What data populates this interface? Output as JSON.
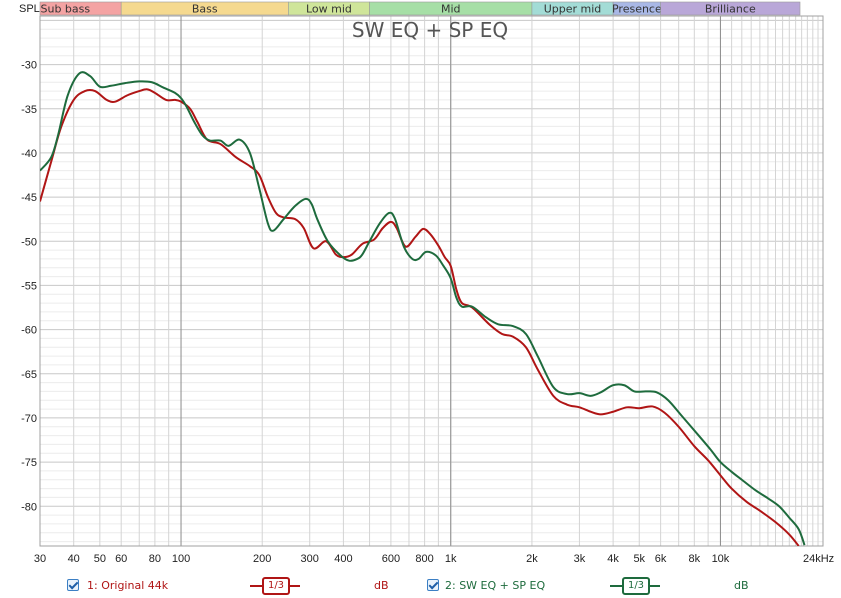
{
  "chart_data": {
    "type": "line",
    "title": "SW EQ + SP EQ",
    "ylabel": "SPL",
    "xscale": "log",
    "xlim": [
      30,
      24000
    ],
    "ylim": [
      -84.5,
      -24.5
    ],
    "grid": true,
    "yticks": [
      -30,
      -35,
      -40,
      -45,
      -50,
      -55,
      -60,
      -65,
      -70,
      -75,
      -80
    ],
    "ytick_labels": [
      "-30",
      "-35",
      "-40",
      "-45",
      "-50",
      "-55",
      "-60",
      "-65",
      "-70",
      "-75",
      "-80"
    ],
    "xticks": [
      {
        "v": 30,
        "label": "30"
      },
      {
        "v": 40,
        "label": "40"
      },
      {
        "v": 50,
        "label": "50"
      },
      {
        "v": 60,
        "label": "60"
      },
      {
        "v": 80,
        "label": "80"
      },
      {
        "v": 100,
        "label": "100"
      },
      {
        "v": 200,
        "label": "200"
      },
      {
        "v": 300,
        "label": "300"
      },
      {
        "v": 400,
        "label": "400"
      },
      {
        "v": 600,
        "label": "600"
      },
      {
        "v": 800,
        "label": "800"
      },
      {
        "v": 1000,
        "label": "1k"
      },
      {
        "v": 2000,
        "label": "2k"
      },
      {
        "v": 3000,
        "label": "3k"
      },
      {
        "v": 4000,
        "label": "4k"
      },
      {
        "v": 5000,
        "label": "5k"
      },
      {
        "v": 6000,
        "label": "6k"
      },
      {
        "v": 8000,
        "label": "8k"
      },
      {
        "v": 10000,
        "label": "10k"
      },
      {
        "v": 24000,
        "label": "24kHz"
      }
    ],
    "bands": [
      {
        "name": "Sub bass",
        "from": 20,
        "to": 60,
        "color": "#f4a3a3"
      },
      {
        "name": "Bass",
        "from": 60,
        "to": 250,
        "color": "#f5d98f"
      },
      {
        "name": "Low mid",
        "from": 250,
        "to": 500,
        "color": "#cfe59a"
      },
      {
        "name": "Mid",
        "from": 500,
        "to": 2000,
        "color": "#a6dfa6"
      },
      {
        "name": "Upper mid",
        "from": 2000,
        "to": 4000,
        "color": "#a3dcd6"
      },
      {
        "name": "Presence",
        "from": 4000,
        "to": 6000,
        "color": "#a9b8e6"
      },
      {
        "name": "Brilliance",
        "from": 6000,
        "to": 20000,
        "color": "#b9a7d8"
      }
    ],
    "series": [
      {
        "name": "1: Original 44k",
        "color": "#b01515",
        "points": [
          [
            30,
            -45.5
          ],
          [
            33,
            -41
          ],
          [
            36,
            -37
          ],
          [
            40,
            -34
          ],
          [
            44,
            -33
          ],
          [
            48,
            -33
          ],
          [
            53,
            -34
          ],
          [
            57,
            -34.2
          ],
          [
            63,
            -33.5
          ],
          [
            70,
            -33
          ],
          [
            75,
            -32.8
          ],
          [
            80,
            -33.2
          ],
          [
            88,
            -34
          ],
          [
            95,
            -34
          ],
          [
            100,
            -34.2
          ],
          [
            108,
            -35
          ],
          [
            115,
            -36.5
          ],
          [
            125,
            -38.5
          ],
          [
            140,
            -39
          ],
          [
            160,
            -40.5
          ],
          [
            180,
            -41.5
          ],
          [
            195,
            -42.5
          ],
          [
            210,
            -45
          ],
          [
            225,
            -46.8
          ],
          [
            240,
            -47.3
          ],
          [
            265,
            -47.5
          ],
          [
            285,
            -48.5
          ],
          [
            310,
            -50.8
          ],
          [
            345,
            -50
          ],
          [
            375,
            -51.5
          ],
          [
            400,
            -51.8
          ],
          [
            430,
            -51.5
          ],
          [
            470,
            -50.3
          ],
          [
            520,
            -49.8
          ],
          [
            560,
            -48.5
          ],
          [
            600,
            -47.8
          ],
          [
            630,
            -48.5
          ],
          [
            680,
            -50.6
          ],
          [
            740,
            -49.5
          ],
          [
            790,
            -48.6
          ],
          [
            840,
            -49.2
          ],
          [
            900,
            -50.5
          ],
          [
            950,
            -51.8
          ],
          [
            1000,
            -52.8
          ],
          [
            1050,
            -55.5
          ],
          [
            1100,
            -57
          ],
          [
            1200,
            -57.5
          ],
          [
            1400,
            -59.5
          ],
          [
            1550,
            -60.5
          ],
          [
            1700,
            -60.8
          ],
          [
            1900,
            -62
          ],
          [
            2100,
            -64.5
          ],
          [
            2400,
            -67.5
          ],
          [
            2700,
            -68.5
          ],
          [
            3000,
            -68.8
          ],
          [
            3300,
            -69.3
          ],
          [
            3600,
            -69.6
          ],
          [
            4000,
            -69.3
          ],
          [
            4500,
            -68.8
          ],
          [
            5000,
            -68.9
          ],
          [
            5600,
            -68.7
          ],
          [
            6200,
            -69.4
          ],
          [
            7000,
            -71
          ],
          [
            8000,
            -73.2
          ],
          [
            9000,
            -74.8
          ],
          [
            10000,
            -76.5
          ],
          [
            11000,
            -78
          ],
          [
            12500,
            -79.5
          ],
          [
            14000,
            -80.5
          ],
          [
            16000,
            -81.8
          ],
          [
            18000,
            -83.2
          ],
          [
            19500,
            -84.5
          ]
        ]
      },
      {
        "name": "2: SW EQ + SP EQ",
        "color": "#1e6b3d",
        "points": [
          [
            30,
            -42
          ],
          [
            33,
            -40.5
          ],
          [
            35,
            -38
          ],
          [
            38,
            -33.5
          ],
          [
            42,
            -31
          ],
          [
            46,
            -31.3
          ],
          [
            50,
            -32.5
          ],
          [
            55,
            -32.4
          ],
          [
            62,
            -32.1
          ],
          [
            70,
            -31.9
          ],
          [
            78,
            -32
          ],
          [
            86,
            -32.6
          ],
          [
            95,
            -33.2
          ],
          [
            100,
            -33.8
          ],
          [
            105,
            -34.8
          ],
          [
            112,
            -36.5
          ],
          [
            120,
            -38
          ],
          [
            128,
            -38.6
          ],
          [
            140,
            -38.6
          ],
          [
            150,
            -39.2
          ],
          [
            165,
            -38.5
          ],
          [
            180,
            -40
          ],
          [
            195,
            -44
          ],
          [
            210,
            -48
          ],
          [
            220,
            -48.8
          ],
          [
            240,
            -47.5
          ],
          [
            265,
            -46
          ],
          [
            290,
            -45.2
          ],
          [
            305,
            -45.8
          ],
          [
            320,
            -47.5
          ],
          [
            350,
            -50
          ],
          [
            390,
            -51.6
          ],
          [
            420,
            -52.2
          ],
          [
            450,
            -52
          ],
          [
            470,
            -51.5
          ],
          [
            500,
            -50
          ],
          [
            545,
            -48
          ],
          [
            590,
            -46.8
          ],
          [
            620,
            -47.4
          ],
          [
            670,
            -50.6
          ],
          [
            720,
            -52
          ],
          [
            760,
            -52
          ],
          [
            810,
            -51.2
          ],
          [
            880,
            -51.6
          ],
          [
            940,
            -52.8
          ],
          [
            1000,
            -54.2
          ],
          [
            1050,
            -56.4
          ],
          [
            1100,
            -57.4
          ],
          [
            1200,
            -57.4
          ],
          [
            1350,
            -58.6
          ],
          [
            1500,
            -59.4
          ],
          [
            1700,
            -59.6
          ],
          [
            1900,
            -60.5
          ],
          [
            2100,
            -63
          ],
          [
            2400,
            -66.5
          ],
          [
            2700,
            -67.3
          ],
          [
            3000,
            -67.2
          ],
          [
            3300,
            -67.5
          ],
          [
            3600,
            -67.1
          ],
          [
            4000,
            -66.3
          ],
          [
            4400,
            -66.3
          ],
          [
            4800,
            -67
          ],
          [
            5300,
            -67
          ],
          [
            5800,
            -67.1
          ],
          [
            6400,
            -68
          ],
          [
            7200,
            -69.8
          ],
          [
            8200,
            -71.8
          ],
          [
            9200,
            -73.6
          ],
          [
            10000,
            -75
          ],
          [
            11000,
            -76.1
          ],
          [
            12000,
            -77
          ],
          [
            13500,
            -78.2
          ],
          [
            15000,
            -79.1
          ],
          [
            16500,
            -80
          ],
          [
            18000,
            -81.3
          ],
          [
            19500,
            -82.6
          ],
          [
            20500,
            -84.4
          ]
        ]
      }
    ]
  },
  "legend": {
    "item1_label": "1: Original 44k",
    "item1_smoothing": "1/3",
    "item1_unit": "dB",
    "item2_label": "2: SW EQ + SP EQ",
    "item2_smoothing": "1/3",
    "item2_unit": "dB"
  }
}
